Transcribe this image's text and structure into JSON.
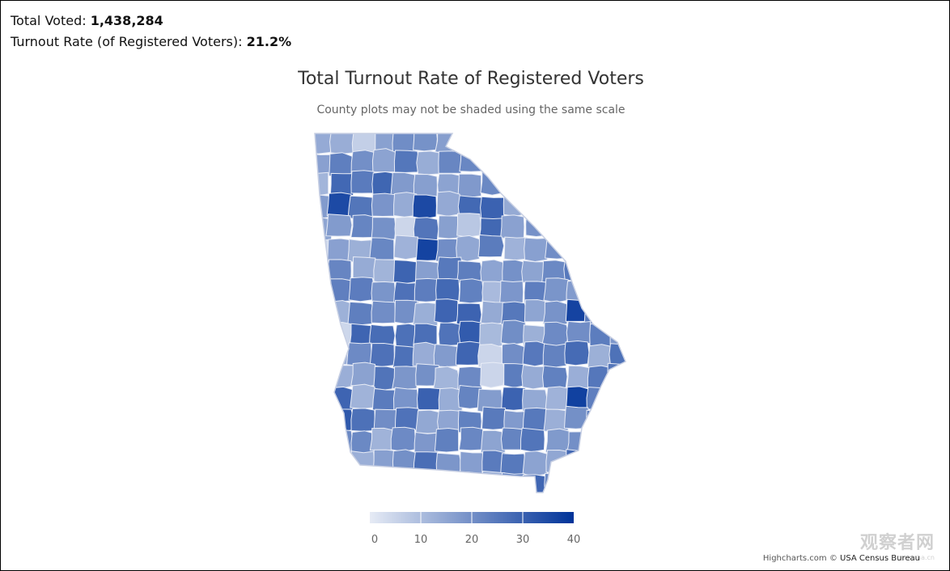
{
  "summary": {
    "total_voted_label": "Total Voted: ",
    "total_voted_value": "1,438,284",
    "turnout_label": "Turnout Rate (of Registered Voters): ",
    "turnout_value": "21.2%"
  },
  "chart_data": {
    "type": "choropleth",
    "title": "Total Turnout Rate of Registered Voters",
    "subtitle": "County plots may not be shaded using the same scale",
    "color_axis": {
      "min": 0,
      "max": 40,
      "ticks": [
        "0",
        "10",
        "20",
        "30",
        "40"
      ],
      "min_color": "#e6ebf5",
      "max_color": "#003399"
    },
    "region": "Georgia counties",
    "shading_note": "most counties fall between ~12 and ~30; lightest counties ~8–12, darkest ~35–40"
  },
  "credits": {
    "highcharts": "Highcharts.com",
    "separator": " © ",
    "owner": "USA Census Bureau"
  },
  "watermark": {
    "main": "观察者网",
    "sub": "guancha.cn"
  }
}
